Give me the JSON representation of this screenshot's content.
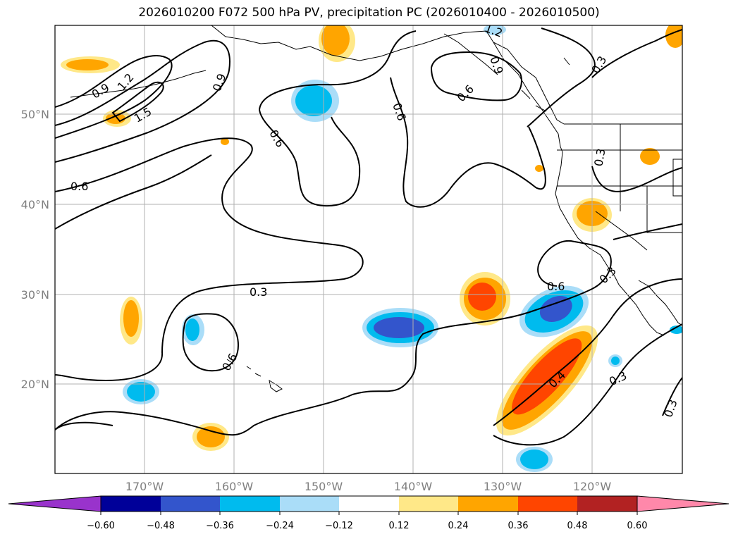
{
  "title": "2026010200 F072 500 hPa PV, precipitation PC (2026010400 - 2026010500)",
  "map": {
    "lat_ticks": [
      "50°N",
      "40°N",
      "30°N",
      "20°N"
    ],
    "lon_ticks": [
      "170°W",
      "160°W",
      "150°W",
      "140°W",
      "130°W",
      "120°W"
    ],
    "contour_labels": [
      "0.6",
      "0.9",
      "1.2",
      "1.5",
      "0.9",
      "0.6",
      "0.6",
      "0.6",
      "1.2",
      "0.9",
      "0.3",
      "0.3",
      "0.3",
      "0.6",
      "0.3",
      "0.6",
      "0.3",
      "0.3",
      "0.4"
    ]
  },
  "colorbar": {
    "ticks": [
      "−0.60",
      "−0.48",
      "−0.36",
      "−0.24",
      "−0.12",
      "0.12",
      "0.24",
      "0.36",
      "0.48",
      "0.60"
    ],
    "colors": [
      "#9933cc",
      "#000099",
      "#3355cc",
      "#00bbee",
      "#aaddf8",
      "#ffffff",
      "#ffe888",
      "#ffa500",
      "#ff4500",
      "#b22222",
      "#ff88aa"
    ]
  },
  "colors": {
    "pos1": "#ffe888",
    "pos2": "#ffa500",
    "pos3": "#ff4500",
    "neg1": "#aaddf8",
    "neg2": "#00bbee",
    "neg3": "#3355cc"
  }
}
